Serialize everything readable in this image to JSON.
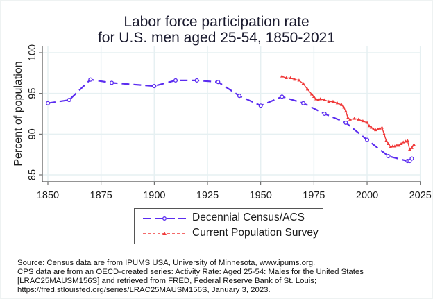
{
  "chart_data": {
    "type": "line",
    "title": [
      "Labor force participation rate",
      "for U.S. men aged 25-54, 1850-2021"
    ],
    "xlabel": "",
    "ylabel": "Percent of population",
    "xlim": [
      1850,
      2025
    ],
    "ylim": [
      85,
      100
    ],
    "xticks": [
      "1850",
      "1875",
      "1900",
      "1925",
      "1950",
      "1975",
      "2000",
      "2025"
    ],
    "yticks": [
      "85",
      "90",
      "95",
      "100"
    ],
    "grid": true,
    "legend_position": "bottom",
    "series": [
      {
        "name": "Decennial Census/ACS",
        "color": "#5b2cf0",
        "style": "long-dash with hollow circle markers",
        "x": [
          1850,
          1860,
          1870,
          1880,
          1900,
          1910,
          1920,
          1930,
          1940,
          1950,
          1960,
          1970,
          1980,
          1990,
          2000,
          2010,
          2019,
          2020,
          2021
        ],
        "y": [
          93.8,
          94.2,
          96.7,
          96.3,
          95.9,
          96.6,
          96.6,
          96.4,
          94.7,
          93.5,
          94.6,
          93.8,
          92.5,
          91.4,
          89.3,
          87.3,
          86.7,
          86.7,
          87.0
        ]
      },
      {
        "name": "Current Population Survey",
        "color": "#f03838",
        "style": "short-dash with triangle markers",
        "x": [
          1960,
          1962,
          1964,
          1966,
          1968,
          1970,
          1972,
          1974,
          1975,
          1976,
          1977,
          1978,
          1980,
          1982,
          1984,
          1986,
          1988,
          1989,
          1990,
          1991,
          1992,
          1994,
          1996,
          1998,
          2000,
          2001,
          2002,
          2003,
          2004,
          2005,
          2006,
          2007,
          2008,
          2009,
          2010,
          2011,
          2012,
          2013,
          2014,
          2015,
          2016,
          2017,
          2018,
          2019,
          2020,
          2021,
          2022
        ],
        "y": [
          97.1,
          96.9,
          96.9,
          96.7,
          96.6,
          96.2,
          95.5,
          94.9,
          94.6,
          94.3,
          94.2,
          94.3,
          94.2,
          94.0,
          94.0,
          93.8,
          93.6,
          93.3,
          92.8,
          92.0,
          91.8,
          91.9,
          91.8,
          91.6,
          91.4,
          91.0,
          90.8,
          90.6,
          90.5,
          90.6,
          90.7,
          90.8,
          90.0,
          89.2,
          88.8,
          88.4,
          88.5,
          88.5,
          88.6,
          88.6,
          88.8,
          89.0,
          89.1,
          89.2,
          88.1,
          88.3,
          88.7
        ]
      }
    ]
  },
  "source_note": [
    "Source: Census data are from IPUMS USA, University of Minnesota, www.ipums.org.",
    "CPS data are from an OECD-created series: Activity Rate: Aged 25-54: Males for the United States",
    "[LRAC25MAUSM156S] and retrieved from FRED, Federal Reserve Bank of St. Louis;",
    "https://fred.stlouisfed.org/series/LRAC25MAUSM156S, January 3, 2023."
  ],
  "colors": {
    "grid": "#e6f0f2",
    "axis": "#555555"
  }
}
